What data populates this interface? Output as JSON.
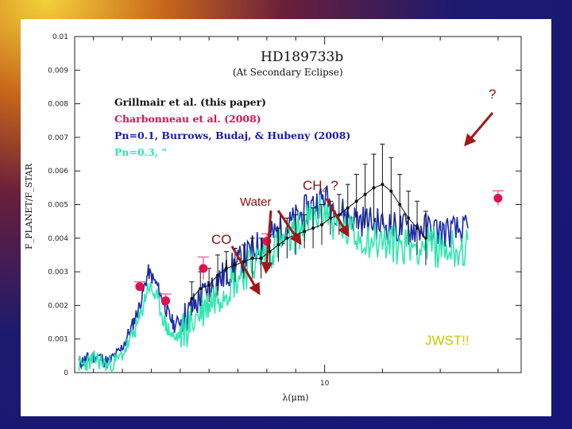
{
  "chart_data": {
    "type": "line",
    "title": "HD189733b",
    "subtitle": "(At Secondary Eclipse)",
    "ylabel": "F_PLANET/F_STAR",
    "xlabel": "λ(μm)",
    "x_tick_labels": [
      "10"
    ],
    "y_tick_labels": [
      "0",
      "0.001",
      "0.002",
      "0.003",
      "0.004",
      "0.005",
      "0.006",
      "0.007",
      "0.008",
      "0.009",
      "0.01"
    ],
    "ylim": [
      0,
      0.01
    ],
    "grid": false,
    "legend_position": "upper-left",
    "legend": [
      {
        "text": "Grillmair et al. (this paper)",
        "color": "#111111"
      },
      {
        "text": "Charbonneau et al. (2008)",
        "color": "#e0114f"
      },
      {
        "text": "Pn=0.1, Burrows, Budaj, & Hubeny (2008)",
        "color": "#1a1aa8"
      },
      {
        "text": "Pn=0.3, \"",
        "color": "#2ee8b0"
      }
    ],
    "series": [
      {
        "name": "Pn=0.1, Burrows, Budaj, & Hubeny (2008)",
        "color": "#1a2aa8",
        "x": [
          1.5,
          1.8,
          2.1,
          2.5,
          2.9,
          3.3,
          3.6,
          3.9,
          4.2,
          4.5,
          4.8,
          5.2,
          5.6,
          6.0,
          6.4,
          6.8,
          7.2,
          7.6,
          8.0,
          8.4,
          8.8,
          9.2,
          9.6,
          10.0,
          10.5,
          11.0,
          11.5,
          12.0,
          12.5,
          13.0,
          13.5,
          14.0,
          14.5,
          15.0
        ],
        "y": [
          0.0003,
          0.0004,
          0.0005,
          0.0003,
          0.0006,
          0.0013,
          0.002,
          0.003,
          0.0026,
          0.0019,
          0.0014,
          0.0017,
          0.0021,
          0.0025,
          0.0028,
          0.0031,
          0.0034,
          0.0037,
          0.004,
          0.0042,
          0.0044,
          0.0047,
          0.005,
          0.0052,
          0.0048,
          0.0046,
          0.0045,
          0.0044,
          0.0043,
          0.0043,
          0.0043,
          0.0042,
          0.0042,
          0.0042
        ]
      },
      {
        "name": "Pn=0.3, \"",
        "color": "#2ee8b0",
        "x": [
          1.5,
          1.8,
          2.1,
          2.5,
          2.9,
          3.3,
          3.6,
          3.9,
          4.2,
          4.5,
          4.8,
          5.2,
          5.6,
          6.0,
          6.4,
          6.8,
          7.2,
          7.6,
          8.0,
          8.4,
          8.8,
          9.2,
          9.6,
          10.0,
          10.5,
          11.0,
          11.5,
          12.0,
          12.5,
          13.0,
          13.5,
          14.0,
          14.5,
          15.0
        ],
        "y": [
          0.0002,
          0.0003,
          0.0004,
          0.0002,
          0.0004,
          0.001,
          0.0016,
          0.0026,
          0.0022,
          0.0014,
          0.001,
          0.0013,
          0.0017,
          0.0021,
          0.0024,
          0.0027,
          0.003,
          0.0033,
          0.0036,
          0.0038,
          0.004,
          0.0043,
          0.0046,
          0.0048,
          0.0043,
          0.0041,
          0.004,
          0.0039,
          0.0038,
          0.0038,
          0.0038,
          0.0037,
          0.0037,
          0.0037
        ]
      },
      {
        "name": "Grillmair et al. (this paper)",
        "color": "#111111",
        "x": [
          5.4,
          5.7,
          6.0,
          6.3,
          6.6,
          6.9,
          7.2,
          7.5,
          7.8,
          8.1,
          8.4,
          8.7,
          9.0,
          9.3,
          9.6,
          9.9,
          10.2,
          10.5,
          10.8,
          11.1,
          11.4,
          11.7,
          12.0,
          12.3,
          12.6,
          12.9,
          13.2,
          13.5
        ],
        "y": [
          0.0022,
          0.0025,
          0.0026,
          0.0029,
          0.0031,
          0.0032,
          0.0033,
          0.0034,
          0.0034,
          0.0036,
          0.0038,
          0.004,
          0.0041,
          0.0042,
          0.0043,
          0.0044,
          0.0046,
          0.0047,
          0.0049,
          0.0051,
          0.0053,
          0.0055,
          0.0056,
          0.0054,
          0.005,
          0.0046,
          0.0043,
          0.004
        ],
        "error": [
          0.0005,
          0.0005,
          0.0005,
          0.0006,
          0.0005,
          0.0005,
          0.0005,
          0.0006,
          0.0006,
          0.0005,
          0.0005,
          0.0006,
          0.0006,
          0.0005,
          0.0006,
          0.0006,
          0.0005,
          0.0006,
          0.0007,
          0.0008,
          0.0009,
          0.001,
          0.0012,
          0.001,
          0.0009,
          0.0008,
          0.0008,
          0.0008
        ]
      },
      {
        "name": "Charbonneau et al. (2008)",
        "color": "#e0114f",
        "x": [
          3.6,
          4.5,
          5.8,
          8.0,
          16.0
        ],
        "y": [
          0.00256,
          0.00214,
          0.0031,
          0.00391,
          0.00519
        ],
        "error": [
          0.00014,
          0.0002,
          0.00034,
          0.00022,
          0.00022
        ]
      }
    ]
  },
  "annotations": {
    "question_top": "?",
    "ch4": "CH",
    "ch4_sub": "4",
    "ch4_q": " ?",
    "water": "Water",
    "co": "CO",
    "jwst": "JWST!!"
  },
  "colors": {
    "arrow": "#a01818",
    "annotation_text": "#8a1010",
    "jwst_text": "#c8c800",
    "legend_pn01": "#1a1aa8",
    "legend_pn03": "#2ee8b0",
    "legend_charbonneau": "#e0114f"
  }
}
